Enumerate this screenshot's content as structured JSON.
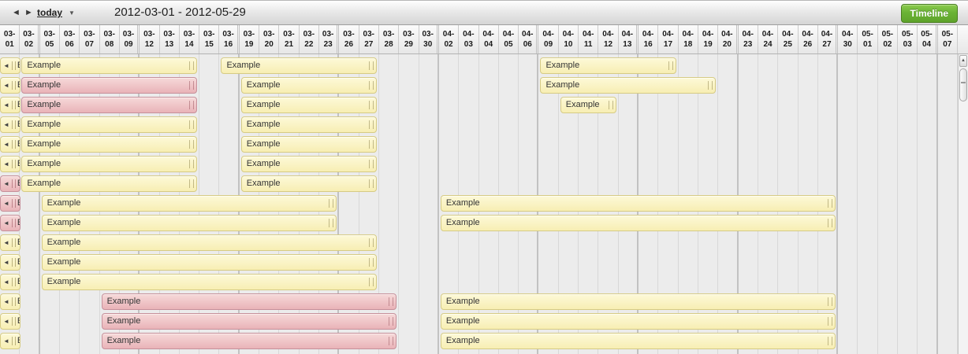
{
  "toolbar": {
    "prev": "◄",
    "next": "►",
    "today": "today",
    "caret": "▼",
    "title": "2012-03-01 - 2012-05-29",
    "timeline_button": "Timeline"
  },
  "scrollbar": {
    "up_arrow": "▲"
  },
  "colors": {
    "accent_green": "#61a62b",
    "bar_yellow": "#f9f1bb",
    "bar_yellow_border": "#d6cb84",
    "bar_pink": "#ecbdc1",
    "bar_pink_border": "#c6909a"
  },
  "timeline": {
    "columns": [
      "03-01",
      "03-02",
      "03-05",
      "03-06",
      "03-07",
      "03-08",
      "03-09",
      "03-12",
      "03-13",
      "03-14",
      "03-15",
      "03-16",
      "03-19",
      "03-20",
      "03-21",
      "03-22",
      "03-23",
      "03-26",
      "03-27",
      "03-28",
      "03-29",
      "03-30",
      "04-02",
      "04-03",
      "04-04",
      "04-05",
      "04-06",
      "04-09",
      "04-10",
      "04-11",
      "04-12",
      "04-13",
      "04-16",
      "04-17",
      "04-18",
      "04-19",
      "04-20",
      "04-23",
      "04-24",
      "04-25",
      "04-26",
      "04-27",
      "04-30",
      "05-01",
      "05-02",
      "05-03",
      "05-04",
      "05-07"
    ],
    "week_end_after": [
      "03-02",
      "03-09",
      "03-16",
      "03-23",
      "03-30",
      "04-06",
      "04-13",
      "04-20",
      "04-27",
      "05-04"
    ],
    "bars": [
      {
        "row": 1,
        "kind": "stub",
        "color": "yellow",
        "label": "E"
      },
      {
        "row": 2,
        "kind": "stub",
        "color": "yellow",
        "label": "E"
      },
      {
        "row": 3,
        "kind": "stub",
        "color": "yellow",
        "label": "E"
      },
      {
        "row": 4,
        "kind": "stub",
        "color": "yellow",
        "label": "E"
      },
      {
        "row": 5,
        "kind": "stub",
        "color": "yellow",
        "label": "E"
      },
      {
        "row": 6,
        "kind": "stub",
        "color": "yellow",
        "label": "E"
      },
      {
        "row": 7,
        "kind": "stub",
        "color": "pink",
        "label": "E"
      },
      {
        "row": 8,
        "kind": "stub",
        "color": "pink",
        "label": "E"
      },
      {
        "row": 9,
        "kind": "stub",
        "color": "pink",
        "label": "E"
      },
      {
        "row": 10,
        "kind": "stub",
        "color": "yellow",
        "label": "E"
      },
      {
        "row": 11,
        "kind": "stub",
        "color": "yellow",
        "label": "E"
      },
      {
        "row": 12,
        "kind": "stub",
        "color": "yellow",
        "label": "E"
      },
      {
        "row": 13,
        "kind": "stub",
        "color": "yellow",
        "label": "E"
      },
      {
        "row": 14,
        "kind": "stub",
        "color": "yellow",
        "label": "E"
      },
      {
        "row": 15,
        "kind": "stub",
        "color": "yellow",
        "label": "E"
      },
      {
        "row": 1,
        "start": "03-02",
        "end": "03-14",
        "color": "yellow",
        "label": "Example"
      },
      {
        "row": 2,
        "start": "03-02",
        "end": "03-14",
        "color": "pink",
        "label": "Example"
      },
      {
        "row": 3,
        "start": "03-02",
        "end": "03-14",
        "color": "pink",
        "label": "Example"
      },
      {
        "row": 4,
        "start": "03-02",
        "end": "03-14",
        "color": "yellow",
        "label": "Example"
      },
      {
        "row": 5,
        "start": "03-02",
        "end": "03-14",
        "color": "yellow",
        "label": "Example"
      },
      {
        "row": 6,
        "start": "03-02",
        "end": "03-14",
        "color": "yellow",
        "label": "Example"
      },
      {
        "row": 7,
        "start": "03-02",
        "end": "03-14",
        "color": "yellow",
        "label": "Example"
      },
      {
        "row": 1,
        "start": "03-16",
        "end": "03-27",
        "color": "yellow",
        "label": "Example"
      },
      {
        "row": 2,
        "start": "03-19",
        "end": "03-27",
        "color": "yellow",
        "label": "Example"
      },
      {
        "row": 3,
        "start": "03-19",
        "end": "03-27",
        "color": "yellow",
        "label": "Example"
      },
      {
        "row": 4,
        "start": "03-19",
        "end": "03-27",
        "color": "yellow",
        "label": "Example"
      },
      {
        "row": 5,
        "start": "03-19",
        "end": "03-27",
        "color": "yellow",
        "label": "Example"
      },
      {
        "row": 6,
        "start": "03-19",
        "end": "03-27",
        "color": "yellow",
        "label": "Example"
      },
      {
        "row": 7,
        "start": "03-19",
        "end": "03-27",
        "color": "yellow",
        "label": "Example"
      },
      {
        "row": 1,
        "start": "04-09",
        "end": "04-17",
        "color": "yellow",
        "label": "Example"
      },
      {
        "row": 2,
        "start": "04-09",
        "end": "04-19",
        "color": "yellow",
        "label": "Example"
      },
      {
        "row": 3,
        "start": "04-10",
        "end": "04-12",
        "color": "yellow",
        "label": "Example"
      },
      {
        "row": 8,
        "start": "03-05",
        "end": "03-23",
        "color": "yellow",
        "label": "Example"
      },
      {
        "row": 8,
        "start": "04-02",
        "end": "04-27",
        "color": "yellow",
        "label": "Example"
      },
      {
        "row": 9,
        "start": "03-05",
        "end": "03-23",
        "color": "yellow",
        "label": "Example"
      },
      {
        "row": 9,
        "start": "04-02",
        "end": "04-27",
        "color": "yellow",
        "label": "Example"
      },
      {
        "row": 10,
        "start": "03-05",
        "end": "03-27",
        "color": "yellow",
        "label": "Example"
      },
      {
        "row": 11,
        "start": "03-05",
        "end": "03-27",
        "color": "yellow",
        "label": "Example"
      },
      {
        "row": 12,
        "start": "03-05",
        "end": "03-27",
        "color": "yellow",
        "label": "Example"
      },
      {
        "row": 13,
        "start": "03-08",
        "end": "03-28",
        "color": "pink",
        "label": "Example"
      },
      {
        "row": 13,
        "start": "04-02",
        "end": "04-27",
        "color": "yellow",
        "label": "Example"
      },
      {
        "row": 14,
        "start": "03-08",
        "end": "03-28",
        "color": "pink",
        "label": "Example"
      },
      {
        "row": 14,
        "start": "04-02",
        "end": "04-27",
        "color": "yellow",
        "label": "Example"
      },
      {
        "row": 15,
        "start": "03-08",
        "end": "03-28",
        "color": "pink",
        "label": "Example"
      },
      {
        "row": 15,
        "start": "04-02",
        "end": "04-27",
        "color": "yellow",
        "label": "Example"
      }
    ]
  }
}
